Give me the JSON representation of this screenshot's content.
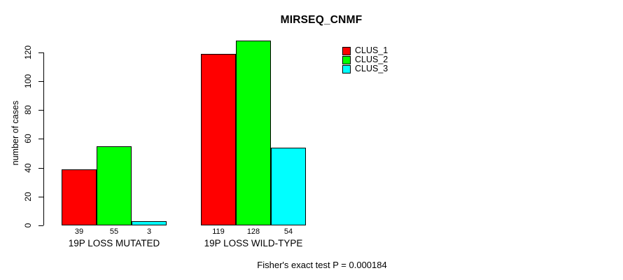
{
  "chart_data": {
    "type": "bar",
    "title": "MIRSEQ_CNMF",
    "xlabel": "",
    "ylabel": "number of cases",
    "categories": [
      "19P LOSS MUTATED",
      "19P LOSS WILD-TYPE"
    ],
    "series": [
      {
        "name": "CLUS_1",
        "color": "#ff0000",
        "values": [
          39,
          119
        ]
      },
      {
        "name": "CLUS_2",
        "color": "#00ff00",
        "values": [
          55,
          128
        ]
      },
      {
        "name": "CLUS_3",
        "color": "#00ffff",
        "values": [
          3,
          54
        ]
      }
    ],
    "value_labels": [
      [
        "39",
        "55",
        "3"
      ],
      [
        "119",
        "128",
        "54"
      ]
    ],
    "yticks": [
      0,
      20,
      40,
      60,
      80,
      100,
      120
    ],
    "ylim": [
      0,
      132
    ],
    "grid": false,
    "legend_position": "top-right",
    "bar_border_color": "#000000",
    "annotation": "Fisher's exact test P = 0.000184"
  }
}
